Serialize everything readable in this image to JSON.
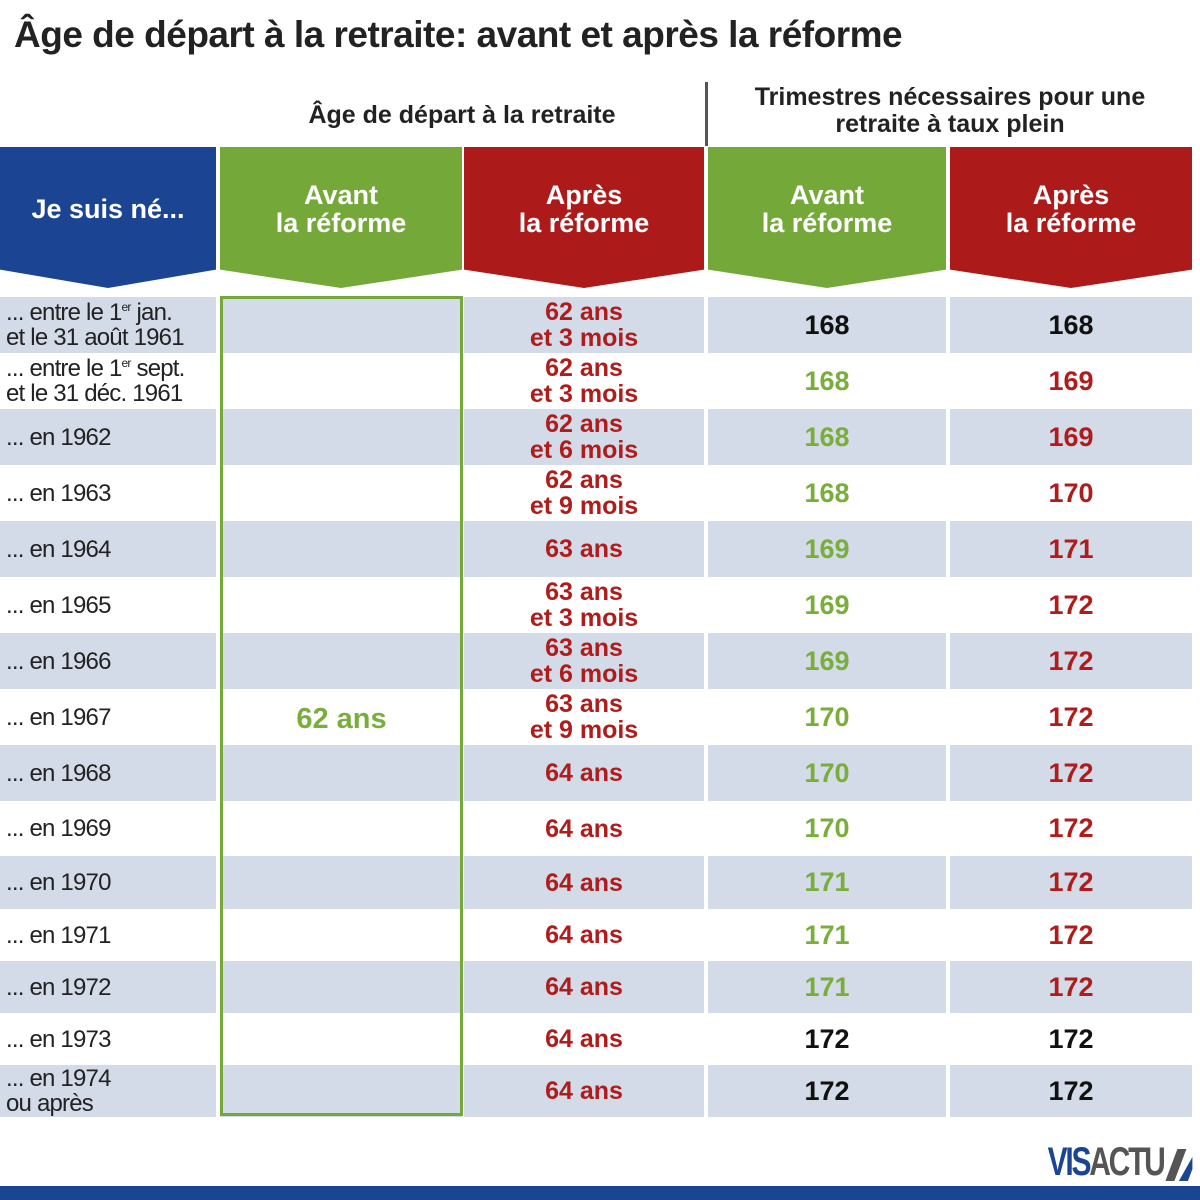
{
  "title": "Âge de départ à la retraite: avant et après la réforme",
  "groups": {
    "age": "Âge de départ à la retraite",
    "trimestres": "Trimestres nécessaires pour une retraite à taux plein"
  },
  "headers": {
    "born": "Je suis né...",
    "age_before": "Avant la réforme",
    "age_after": "Après la réforme",
    "tri_before": "Avant la réforme",
    "tri_after": "Après la réforme"
  },
  "colors": {
    "blue": "#1b4592",
    "green": "#74a93a",
    "red": "#ad1a1a",
    "row_shade": "#d3dbe8"
  },
  "chart_data": {
    "type": "table",
    "title": "Âge de départ à la retraite: avant et après la réforme",
    "columns": [
      "Je suis né...",
      "Âge avant la réforme",
      "Âge après la réforme",
      "Trimestres avant la réforme",
      "Trimestres après la réforme"
    ],
    "age_before_all": "62 ans",
    "rows": [
      {
        "born": "... entre le 1er jan. et le 31 août 1961",
        "age_after": "62 ans et 3 mois",
        "tri_before": "168",
        "tri_after": "168",
        "tri_before_color": "black",
        "tri_after_color": "black"
      },
      {
        "born": "... entre le 1er sept. et le 31 déc. 1961",
        "age_after": "62 ans et 3 mois",
        "tri_before": "168",
        "tri_after": "169",
        "tri_before_color": "green",
        "tri_after_color": "red"
      },
      {
        "born": "... en 1962",
        "age_after": "62 ans et 6 mois",
        "tri_before": "168",
        "tri_after": "169",
        "tri_before_color": "green",
        "tri_after_color": "red"
      },
      {
        "born": "... en 1963",
        "age_after": "62 ans et 9 mois",
        "tri_before": "168",
        "tri_after": "170",
        "tri_before_color": "green",
        "tri_after_color": "red"
      },
      {
        "born": "... en 1964",
        "age_after": "63 ans",
        "tri_before": "169",
        "tri_after": "171",
        "tri_before_color": "green",
        "tri_after_color": "red"
      },
      {
        "born": "... en 1965",
        "age_after": "63 ans et 3 mois",
        "tri_before": "169",
        "tri_after": "172",
        "tri_before_color": "green",
        "tri_after_color": "red"
      },
      {
        "born": "... en 1966",
        "age_after": "63 ans et 6 mois",
        "tri_before": "169",
        "tri_after": "172",
        "tri_before_color": "green",
        "tri_after_color": "red"
      },
      {
        "born": "... en 1967",
        "age_after": "63 ans et 9 mois",
        "tri_before": "170",
        "tri_after": "172",
        "tri_before_color": "green",
        "tri_after_color": "red"
      },
      {
        "born": "... en 1968",
        "age_after": "64 ans",
        "tri_before": "170",
        "tri_after": "172",
        "tri_before_color": "green",
        "tri_after_color": "red"
      },
      {
        "born": "... en 1969",
        "age_after": "64 ans",
        "tri_before": "170",
        "tri_after": "172",
        "tri_before_color": "green",
        "tri_after_color": "red"
      },
      {
        "born": "... en 1970",
        "age_after": "64 ans",
        "tri_before": "171",
        "tri_after": "172",
        "tri_before_color": "green",
        "tri_after_color": "red"
      },
      {
        "born": "... en 1971",
        "age_after": "64 ans",
        "tri_before": "171",
        "tri_after": "172",
        "tri_before_color": "green",
        "tri_after_color": "red"
      },
      {
        "born": "... en 1972",
        "age_after": "64 ans",
        "tri_before": "171",
        "tri_after": "172",
        "tri_before_color": "green",
        "tri_after_color": "red"
      },
      {
        "born": "... en 1973",
        "age_after": "64 ans",
        "tri_before": "172",
        "tri_after": "172",
        "tri_before_color": "black",
        "tri_after_color": "black"
      },
      {
        "born": "... en 1974 ou après",
        "age_after": "64 ans",
        "tri_before": "172",
        "tri_after": "172",
        "tri_before_color": "black",
        "tri_after_color": "black"
      }
    ]
  },
  "logo": {
    "part1": "VIS",
    "part2": "ACTU"
  }
}
